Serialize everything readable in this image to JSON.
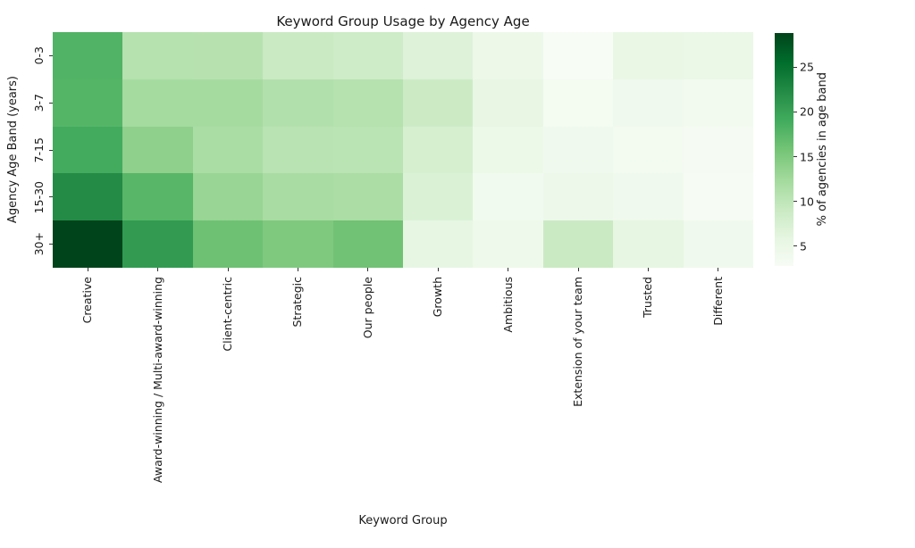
{
  "chart_data": {
    "type": "heatmap",
    "title": "Keyword Group Usage by Agency Age",
    "xlabel": "Keyword Group",
    "ylabel": "Agency Age Band (years)",
    "x_categories": [
      "Creative",
      "Award-winning / Multi-award-winning",
      "Client-centric",
      "Strategic",
      "Our people",
      "Growth",
      "Ambitious",
      "Extension of your team",
      "Trusted",
      "Different"
    ],
    "y_categories": [
      "0-3",
      "3-7",
      "7-15",
      "15-30",
      "30+"
    ],
    "values": [
      [
        18.0,
        10.8,
        10.7,
        9.0,
        8.6,
        6.9,
        4.6,
        2.8,
        5.2,
        4.9
      ],
      [
        17.8,
        12.2,
        12.1,
        11.1,
        10.8,
        8.8,
        5.4,
        3.4,
        4.0,
        3.7
      ],
      [
        19.0,
        13.9,
        11.8,
        10.5,
        10.4,
        7.8,
        4.8,
        4.1,
        3.6,
        3.2
      ],
      [
        22.3,
        17.6,
        13.1,
        11.9,
        11.7,
        7.2,
        3.9,
        4.5,
        4.0,
        3.0
      ],
      [
        28.8,
        20.7,
        16.2,
        15.0,
        16.0,
        5.6,
        4.4,
        9.0,
        5.8,
        4.0
      ]
    ],
    "vmin": 2.8,
    "vmax": 28.8,
    "colormap": "Greens",
    "colormap_stops": [
      "#f7fcf5",
      "#e5f5e0",
      "#c7e9c0",
      "#a1d99b",
      "#74c476",
      "#41ab5d",
      "#238b45",
      "#006d2c",
      "#00441b"
    ],
    "grid": false,
    "colorbar": {
      "label": "% of agencies in age band",
      "ticks": [
        5,
        10,
        15,
        20,
        25
      ],
      "position": "right"
    },
    "text_color": "#1a1a1a"
  }
}
